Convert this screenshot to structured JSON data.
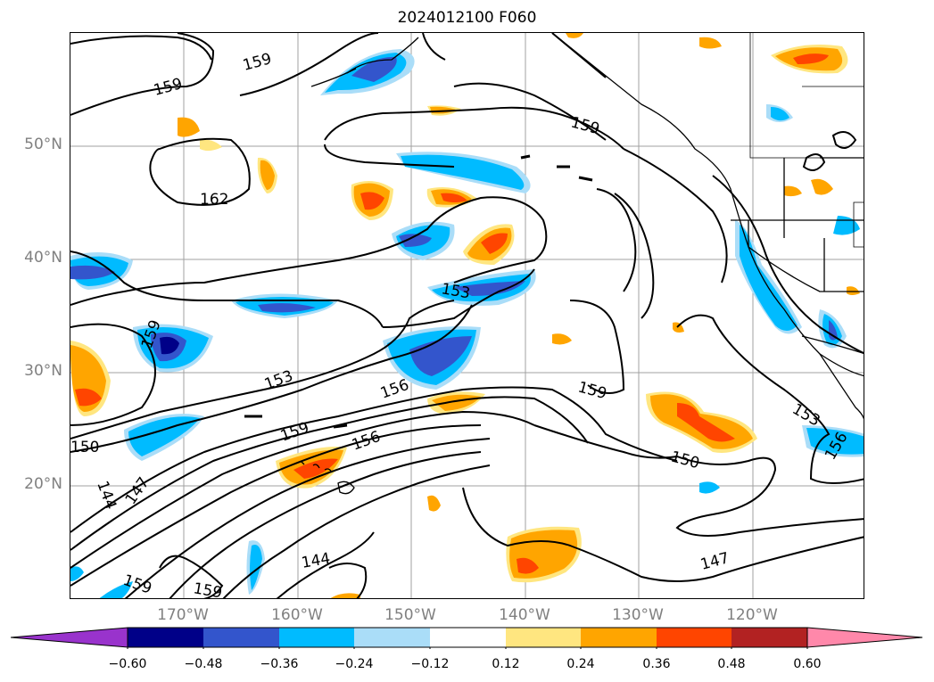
{
  "title": "2024012100 F060",
  "lat_labels": [
    "50°N",
    "40°N",
    "30°N",
    "20°N"
  ],
  "lon_labels": [
    "170°W",
    "160°W",
    "150°W",
    "140°W",
    "130°W",
    "120°W"
  ],
  "contour_labels": [
    "159",
    "159",
    "162",
    "159",
    "153",
    "159",
    "153",
    "156",
    "159",
    "159",
    "156",
    "150",
    "147",
    "144",
    "144",
    "159",
    "159",
    "150",
    "147",
    "153",
    "156"
  ],
  "colorbar": {
    "ticks": [
      "−0.60",
      "−0.48",
      "−0.36",
      "−0.24",
      "−0.12",
      "0.12",
      "0.24",
      "0.36",
      "0.48",
      "0.60"
    ],
    "colors": [
      "#9933cc",
      "#000088",
      "#3355cc",
      "#00bbff",
      "#aaddf8",
      "#ffffff",
      "#ffe680",
      "#ffa500",
      "#ff4500",
      "#b22222",
      "#ff88aa"
    ]
  },
  "colors": {
    "grid": "#a0a0a0",
    "contour": "#000000",
    "coast": "#000000"
  }
}
